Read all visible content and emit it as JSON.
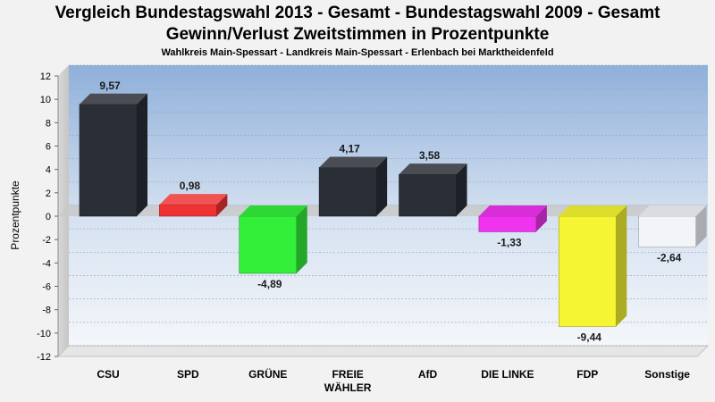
{
  "chart_data": {
    "type": "bar",
    "title_lines": [
      "Vergleich Bundestagswahl 2013 - Gesamt - Bundestagswahl 2009 - Gesamt",
      "Gewinn/Verlust Zweitstimmen in Prozentpunkte"
    ],
    "subtitle": "Wahlkreis Main-Spessart - Landkreis Main-Spessart - Erlenbach bei Marktheidenfeld",
    "ylabel": "Prozentpunkte",
    "xlabel": "",
    "ylim": [
      -12,
      12
    ],
    "yticks": [
      12,
      10,
      8,
      6,
      4,
      2,
      0,
      -2,
      -4,
      -6,
      -8,
      -10,
      -12
    ],
    "grid": true,
    "categories": [
      "CSU",
      "SPD",
      "GRÜNE",
      "FREIE WÄHLER",
      "AfD",
      "DIE LINKE",
      "FDP",
      "Sonstige"
    ],
    "category_lines": [
      [
        "CSU"
      ],
      [
        "SPD"
      ],
      [
        "GRÜNE"
      ],
      [
        "FREIE",
        "WÄHLER"
      ],
      [
        "AfD"
      ],
      [
        "DIE LINKE"
      ],
      [
        "FDP"
      ],
      [
        "Sonstige"
      ]
    ],
    "values": [
      9.57,
      0.98,
      -4.89,
      4.17,
      3.58,
      -1.33,
      -9.44,
      -2.64
    ],
    "value_labels": [
      "9,57",
      "0,98",
      "-4,89",
      "4,17",
      "3,58",
      "-1,33",
      "-9,44",
      "-2,64"
    ],
    "colors": [
      "#2a2e36",
      "#ef3333",
      "#33ef3a",
      "#2a2e36",
      "#2a2e36",
      "#ef33ef",
      "#f5f533",
      "#f2f4f8"
    ]
  }
}
